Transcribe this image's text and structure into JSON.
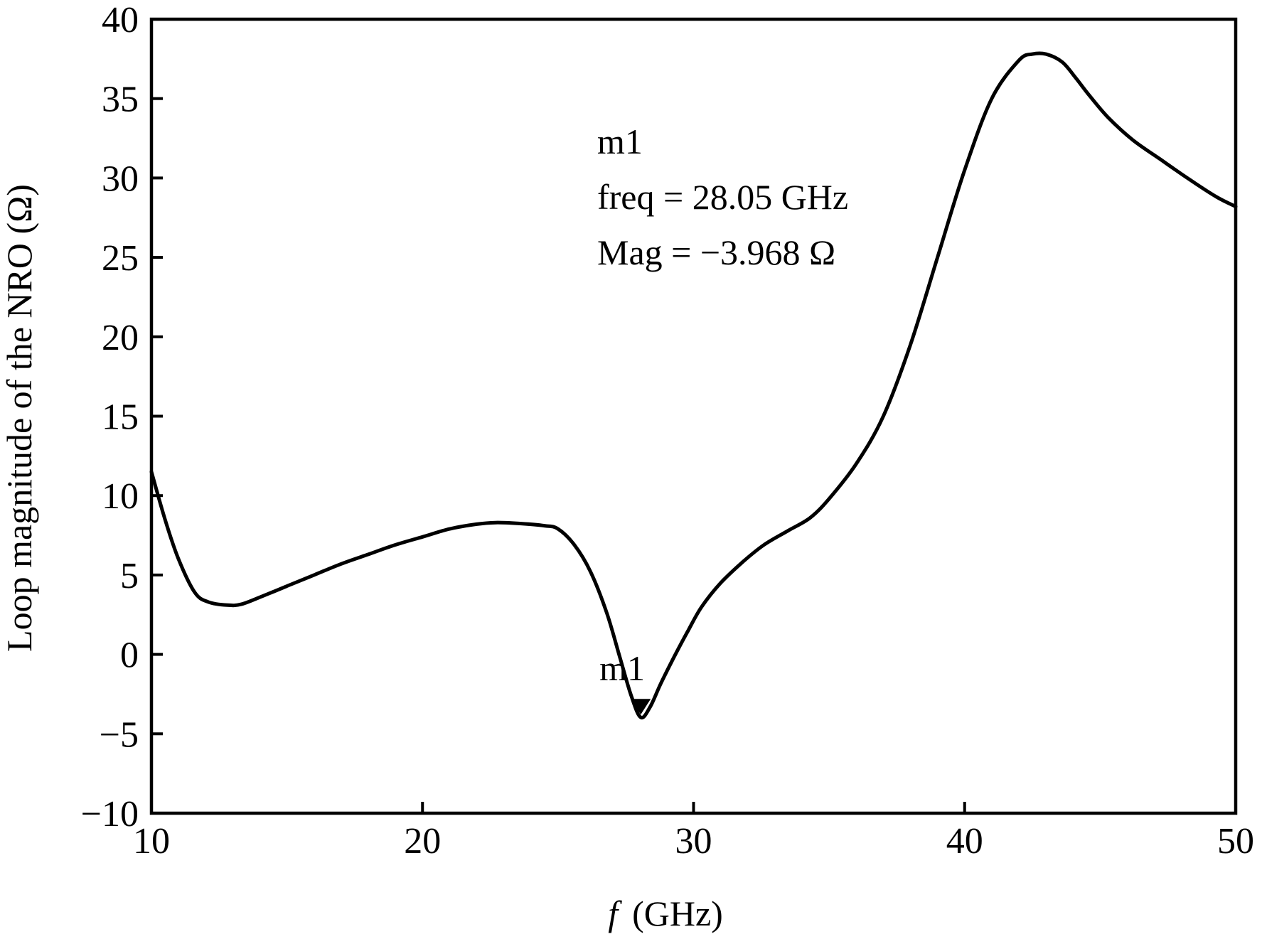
{
  "chart_data": {
    "type": "line",
    "title": "",
    "xlabel_symbol": "f",
    "xlabel_unit": "(GHz)",
    "ylabel": "Loop magnitude of the NRO (Ω)",
    "xlim": [
      10,
      50
    ],
    "ylim": [
      -10,
      40
    ],
    "x_ticks": [
      10,
      20,
      30,
      40,
      50
    ],
    "y_ticks": [
      -10,
      -5,
      0,
      5,
      10,
      15,
      20,
      25,
      30,
      35,
      40
    ],
    "x_tick_labels": [
      "10",
      "20",
      "30",
      "40",
      "50"
    ],
    "y_tick_labels": [
      "−10",
      "−5",
      "0",
      "5",
      "10",
      "15",
      "20",
      "25",
      "30",
      "35",
      "40"
    ],
    "grid": false,
    "legend": "none",
    "series": [
      {
        "name": "Loop magnitude",
        "color": "#000000",
        "x": [
          10.0,
          10.5,
          11.0,
          11.6,
          12.1,
          12.8,
          13.3,
          14.0,
          15.0,
          16.0,
          17.0,
          18.0,
          19.0,
          20.0,
          21.0,
          22.0,
          22.7,
          23.5,
          24.5,
          25.0,
          25.6,
          26.2,
          26.8,
          27.3,
          27.7,
          28.05,
          28.4,
          28.8,
          29.3,
          29.8,
          30.3,
          31.0,
          31.8,
          32.6,
          33.5,
          34.3,
          35.0,
          36.0,
          37.0,
          38.0,
          39.0,
          40.0,
          41.0,
          42.0,
          42.5,
          43.0,
          43.6,
          44.1,
          44.6,
          45.3,
          46.2,
          47.2,
          48.3,
          49.3,
          50.0
        ],
        "values": [
          11.5,
          8.5,
          6.0,
          3.9,
          3.3,
          3.1,
          3.15,
          3.6,
          4.3,
          5.0,
          5.7,
          6.3,
          6.9,
          7.4,
          7.9,
          8.2,
          8.3,
          8.25,
          8.1,
          7.9,
          6.9,
          5.2,
          2.6,
          -0.3,
          -2.6,
          -3.968,
          -3.3,
          -1.8,
          -0.1,
          1.5,
          3.0,
          4.5,
          5.8,
          6.9,
          7.8,
          8.6,
          9.8,
          12.0,
          15.0,
          19.5,
          25.0,
          30.5,
          35.0,
          37.4,
          37.8,
          37.8,
          37.3,
          36.3,
          35.2,
          33.8,
          32.4,
          31.2,
          29.9,
          28.8,
          28.2
        ]
      }
    ],
    "markers": [
      {
        "id": "m1",
        "label": "m1",
        "freq": 28.05,
        "mag": -3.968,
        "readout_line1": "m1",
        "readout_line2": "freq = 28.05 GHz",
        "readout_line3": "Mag = −3.968 Ω"
      }
    ]
  }
}
